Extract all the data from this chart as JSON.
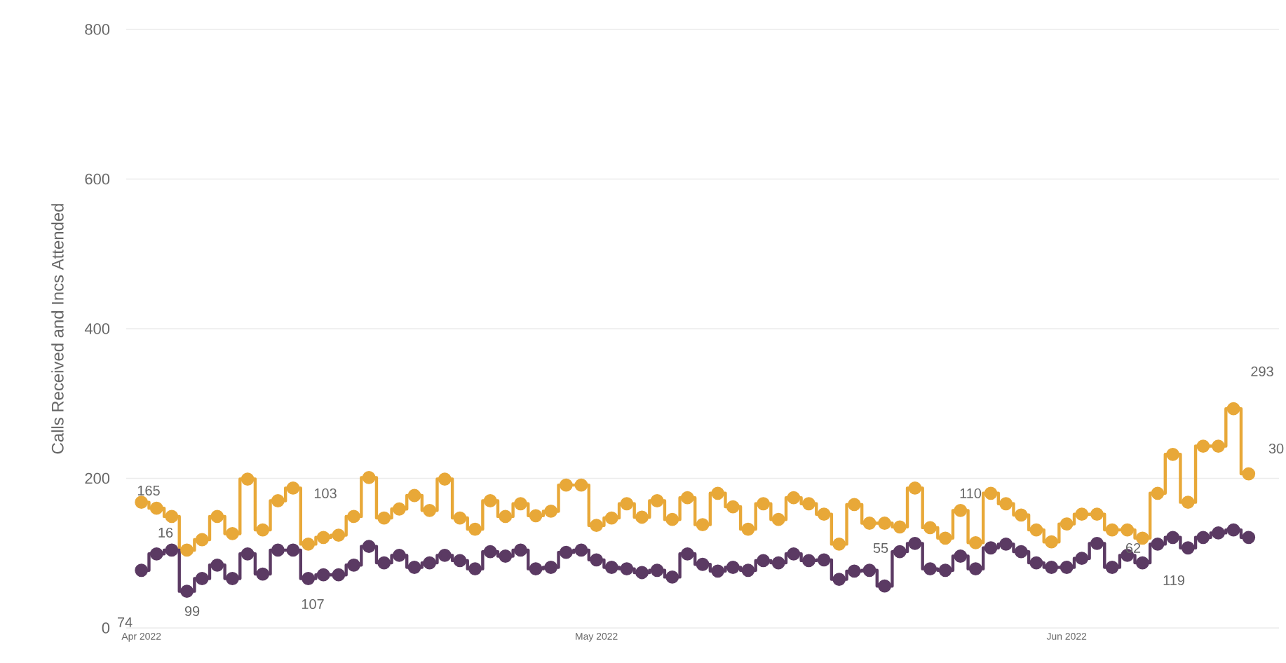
{
  "chart_data": {
    "type": "step",
    "ylabel": "Calls Received and Incs Attended",
    "x": [
      "2022-04-01",
      "2022-04-02",
      "2022-04-03",
      "2022-04-04",
      "2022-04-05",
      "2022-04-06",
      "2022-04-07",
      "2022-04-08",
      "2022-04-09",
      "2022-04-10",
      "2022-04-11",
      "2022-04-12",
      "2022-04-13",
      "2022-04-14",
      "2022-04-15",
      "2022-04-16",
      "2022-04-17",
      "2022-04-18",
      "2022-04-19",
      "2022-04-20",
      "2022-04-21",
      "2022-04-22",
      "2022-04-23",
      "2022-04-24",
      "2022-04-25",
      "2022-04-26",
      "2022-04-27",
      "2022-04-28",
      "2022-04-29",
      "2022-04-30",
      "2022-05-01",
      "2022-05-02",
      "2022-05-03",
      "2022-05-04",
      "2022-05-05",
      "2022-05-06",
      "2022-05-07",
      "2022-05-08",
      "2022-05-09",
      "2022-05-10",
      "2022-05-11",
      "2022-05-12",
      "2022-05-13",
      "2022-05-14",
      "2022-05-15",
      "2022-05-16",
      "2022-05-17",
      "2022-05-18",
      "2022-05-19",
      "2022-05-20",
      "2022-05-21",
      "2022-05-22",
      "2022-05-23",
      "2022-05-24",
      "2022-05-25",
      "2022-05-26",
      "2022-05-27",
      "2022-05-28",
      "2022-05-29",
      "2022-05-30",
      "2022-05-31",
      "2022-06-01",
      "2022-06-02",
      "2022-06-03",
      "2022-06-04",
      "2022-06-05",
      "2022-06-06",
      "2022-06-07",
      "2022-06-08",
      "2022-06-09",
      "2022-06-10",
      "2022-06-11",
      "2022-06-12",
      "2022-06-13"
    ],
    "series": [
      {
        "color": "#e8a838",
        "values": [
          168,
          160,
          149,
          104,
          118,
          149,
          126,
          199,
          131,
          170,
          187,
          112,
          121,
          124,
          149,
          201,
          147,
          159,
          177,
          157,
          199,
          147,
          132,
          170,
          149,
          166,
          150,
          156,
          191,
          191,
          137,
          147,
          166,
          148,
          170,
          145,
          174,
          138,
          180,
          162,
          132,
          166,
          145,
          174,
          166,
          152,
          112,
          165,
          140,
          140,
          135,
          187,
          134,
          120,
          157,
          114,
          180,
          166,
          151,
          131,
          115,
          139,
          152,
          152,
          131,
          131,
          120,
          180,
          232,
          168,
          243,
          243,
          293,
          206
        ]
      },
      {
        "color": "#5b3a63",
        "values": [
          77,
          99,
          104,
          49,
          66,
          84,
          66,
          99,
          72,
          104,
          104,
          66,
          71,
          71,
          84,
          109,
          87,
          97,
          81,
          87,
          97,
          90,
          79,
          102,
          96,
          104,
          79,
          81,
          101,
          104,
          91,
          81,
          79,
          74,
          77,
          68,
          99,
          85,
          76,
          81,
          77,
          90,
          87,
          99,
          90,
          91,
          65,
          76,
          77,
          56,
          102,
          113,
          79,
          77,
          96,
          79,
          107,
          112,
          102,
          87,
          81,
          81,
          93,
          113,
          81,
          97,
          87,
          112,
          121,
          107,
          121,
          127,
          131,
          121
        ]
      }
    ],
    "xlim": [
      "2022-03-31",
      "2022-06-15"
    ],
    "xticks": [
      {
        "value": "2022-04-01",
        "label": "Apr 2022"
      },
      {
        "value": "2022-05-01",
        "label": "May 2022"
      },
      {
        "value": "2022-06-01",
        "label": "Jun 2022"
      }
    ],
    "ylim": [
      0,
      800
    ],
    "yticks": [
      0,
      200,
      400,
      600,
      800
    ],
    "grid": "y",
    "marker": "circle",
    "line_style": "solid",
    "annotations": [
      "165",
      "74",
      "16",
      "99",
      "103",
      "107",
      "55",
      "110",
      "62",
      "119",
      "293",
      "30"
    ]
  }
}
